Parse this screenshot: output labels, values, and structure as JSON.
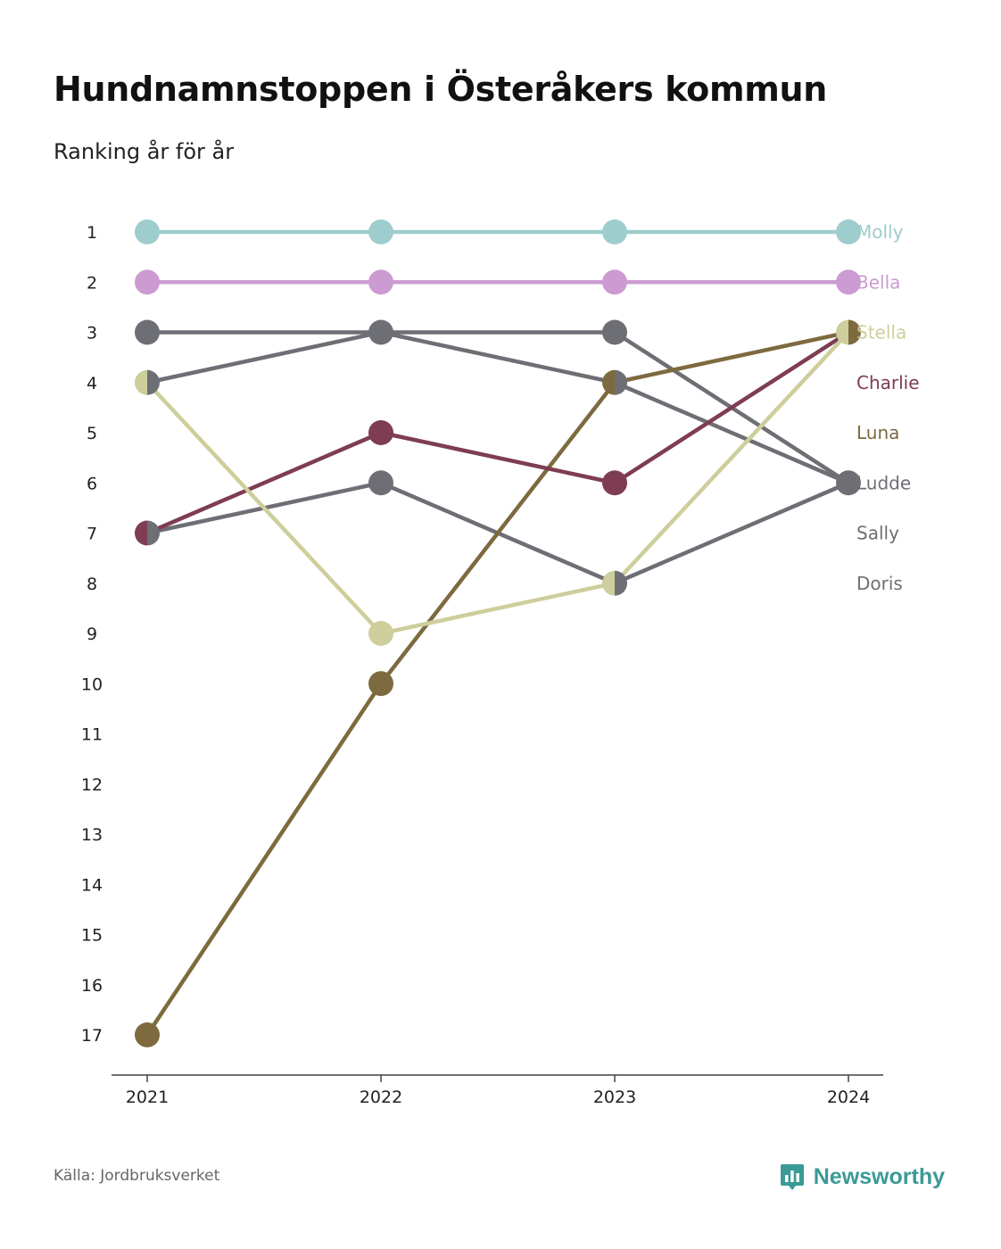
{
  "title": "Hundnamnstoppen i Österåkers kommun",
  "subtitle": "Ranking år för år",
  "source": "Källa: Jordbruksverket",
  "brand": {
    "name": "Newsworthy",
    "icon": "newsworthy-logo-icon",
    "color": "#3a9a96"
  },
  "chart_data": {
    "type": "line",
    "subtype": "bump",
    "title": "Hundnamnstoppen i Österåkers kommun",
    "subtitle": "Ranking år för år",
    "x": [
      "2021",
      "2022",
      "2023",
      "2024"
    ],
    "ylim": [
      1,
      17
    ],
    "y_inverted": true,
    "y_ticks": [
      "1",
      "2",
      "3",
      "4",
      "5",
      "6",
      "7",
      "8",
      "9",
      "10",
      "11",
      "12",
      "13",
      "14",
      "15",
      "16",
      "17"
    ],
    "grid": false,
    "legend": "right (direct labels)",
    "series": [
      {
        "name": "Molly",
        "color": "#9dcdcc",
        "values": [
          1,
          1,
          1,
          1
        ]
      },
      {
        "name": "Bella",
        "color": "#cc9bd1",
        "values": [
          2,
          2,
          2,
          2
        ]
      },
      {
        "name": "Stella",
        "color": "#cdce9b",
        "values": [
          4,
          9,
          8,
          3
        ]
      },
      {
        "name": "Charlie",
        "color": "#7e3d52",
        "values": [
          7,
          5,
          6,
          3
        ]
      },
      {
        "name": "Luna",
        "color": "#7d6a3e",
        "values": [
          17,
          10,
          4,
          3
        ]
      },
      {
        "name": "Ludde",
        "color": "#6e6e75",
        "values": [
          3,
          3,
          3,
          6
        ]
      },
      {
        "name": "Sally",
        "color": "#6e6e75",
        "values": [
          4,
          3,
          4,
          6
        ]
      },
      {
        "name": "Doris",
        "color": "#6e6e75",
        "values": [
          7,
          6,
          8,
          6
        ]
      }
    ]
  }
}
